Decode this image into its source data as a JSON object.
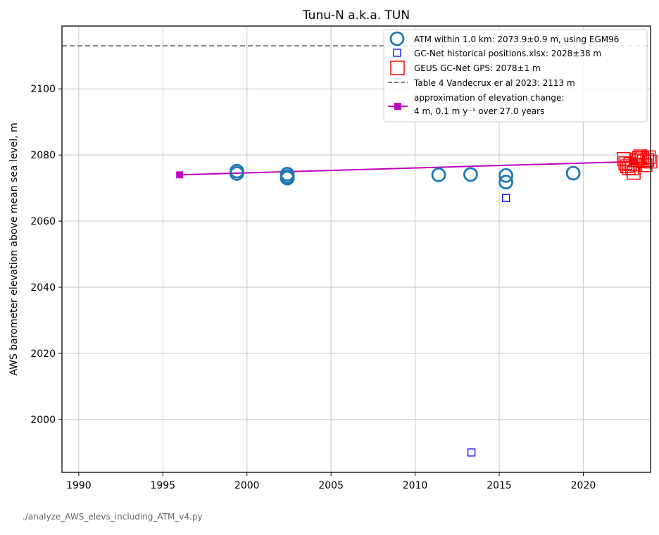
{
  "footer_text": "./analyze_AWS_elevs_including_ATM_v4.py",
  "chart_data": {
    "type": "scatter",
    "title": "Tunu-N a.k.a. TUN",
    "xlabel": "",
    "ylabel": "AWS barometer elevation above mean sea level, m",
    "xlim": [
      1989,
      2024
    ],
    "ylim": [
      1984,
      2119
    ],
    "xticks": [
      1990,
      1995,
      2000,
      2005,
      2010,
      2015,
      2020
    ],
    "yticks": [
      2000,
      2020,
      2040,
      2060,
      2080,
      2100
    ],
    "grid": true,
    "legend_position": "top-right",
    "legend": [
      {
        "label": "ATM within 1.0 km: 2073.9±0.9 m, using EGM96",
        "marker": "circle",
        "color": "#1f77b4"
      },
      {
        "label": "GC-Net historical positions.xlsx: 2028±38 m",
        "marker": "small-square",
        "color": "#0000ff"
      },
      {
        "label": "GEUS GC-Net GPS: 2078±1 m",
        "marker": "square",
        "color": "#ff0000"
      },
      {
        "label": "Table 4 Vandecrux er al 2023: 2113 m",
        "marker": "dashed-line",
        "color": "#808080"
      },
      {
        "label_line1": "approximation of elevation change:",
        "label_line2": "4 m, 0.1 m y⁻¹ over 27.0 years",
        "marker": "line-square",
        "color": "#bf00bf"
      }
    ],
    "series": [
      {
        "name": "ATM within 1.0 km: 2073.9±0.9 m, using EGM96",
        "marker": "circle",
        "color": "#1f77b4",
        "points": [
          [
            1999.4,
            2075.1
          ],
          [
            1999.4,
            2074.4
          ],
          [
            2002.4,
            2074.2
          ],
          [
            2002.4,
            2073.0
          ],
          [
            2002.4,
            2073.5
          ],
          [
            2011.4,
            2074.0
          ],
          [
            2013.3,
            2074.1
          ],
          [
            2015.4,
            2073.8
          ],
          [
            2015.4,
            2071.8
          ],
          [
            2019.4,
            2074.5
          ]
        ]
      },
      {
        "name": "GC-Net historical positions.xlsx: 2028±38 m",
        "marker": "small-square",
        "color": "#0000ff",
        "points": [
          [
            2013.35,
            1990.0
          ],
          [
            2015.4,
            2067.0
          ]
        ]
      },
      {
        "name": "GEUS GC-Net GPS: 2078±1 m",
        "marker": "square",
        "color": "#ff0000",
        "points": [
          [
            2022.4,
            2078.8
          ],
          [
            2022.5,
            2077.5
          ],
          [
            2022.6,
            2076.6
          ],
          [
            2022.7,
            2076.0
          ],
          [
            2022.8,
            2077.2
          ],
          [
            2022.9,
            2075.9
          ],
          [
            2023.0,
            2074.6
          ],
          [
            2023.1,
            2077.1
          ],
          [
            2023.2,
            2078.4
          ],
          [
            2023.3,
            2079.1
          ],
          [
            2023.4,
            2079.6
          ],
          [
            2023.5,
            2079.0
          ],
          [
            2023.6,
            2078.1
          ],
          [
            2023.7,
            2076.9
          ],
          [
            2023.8,
            2078.5
          ],
          [
            2023.9,
            2079.3
          ],
          [
            2024.0,
            2078.0
          ]
        ]
      },
      {
        "name": "Table 4 Vandecrux er al 2023: 2113 m",
        "marker": "hline",
        "color": "#808080",
        "y": 2113
      },
      {
        "name": "approximation of elevation change:",
        "marker": "line-square",
        "color": "#bf00bf",
        "points": [
          [
            1996.0,
            2074.0
          ],
          [
            2023.0,
            2078.0
          ]
        ]
      }
    ]
  }
}
